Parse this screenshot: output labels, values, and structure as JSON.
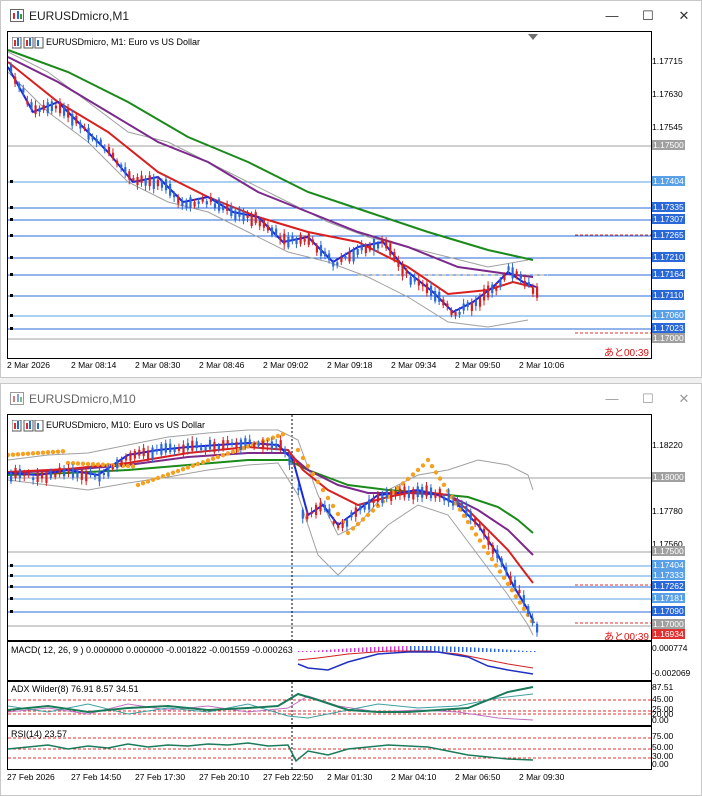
{
  "window1": {
    "title": "EURUSDmicro,M1",
    "chart_label": "EURUSDmicro, M1:  Euro vs US Dollar",
    "price_ticks": [
      "1.17715",
      "1.17630",
      "1.17545"
    ],
    "price_tags": [
      {
        "value": "1.17500",
        "color": "#a0a0a0"
      },
      {
        "value": "1.17404",
        "color": "#5aa0e6"
      },
      {
        "value": "1.17335",
        "color": "#2a68d8"
      },
      {
        "value": "1.17307",
        "color": "#2a68d8"
      },
      {
        "value": "1.17265",
        "color": "#2a68d8"
      },
      {
        "value": "1.17210",
        "color": "#2a68d8"
      },
      {
        "value": "1.17164",
        "color": "#2a68d8"
      },
      {
        "value": "1.17110",
        "color": "#2a68d8"
      },
      {
        "value": "1.17060",
        "color": "#5aa0e6"
      },
      {
        "value": "1.17023",
        "color": "#2a68d8"
      },
      {
        "value": "1.17000",
        "color": "#a0a0a0"
      }
    ],
    "time_labels": [
      "2 Mar 2026",
      "2 Mar 08:14",
      "2 Mar 08:30",
      "2 Mar 08:46",
      "2 Mar 09:02",
      "2 Mar 09:18",
      "2 Mar 09:34",
      "2 Mar 09:50",
      "2 Mar 10:06"
    ],
    "countdown": "あと00:39"
  },
  "window2": {
    "title": "EURUSDmicro,M10",
    "chart_label": "EURUSDmicro, M10:  Euro vs US Dollar",
    "price_ticks": [
      "1.18220",
      "1.17780",
      "1.17560"
    ],
    "price_tags": [
      {
        "value": "1.18000",
        "color": "#a0a0a0"
      },
      {
        "value": "1.17500",
        "color": "#a0a0a0"
      },
      {
        "value": "1.17404",
        "color": "#5aa0e6"
      },
      {
        "value": "1.17333",
        "color": "#5aa0e6"
      },
      {
        "value": "1.17262",
        "color": "#2a68d8"
      },
      {
        "value": "1.17181",
        "color": "#5aa0e6"
      },
      {
        "value": "1.17090",
        "color": "#2a68d8"
      },
      {
        "value": "1.17000",
        "color": "#a0a0a0"
      },
      {
        "value": "1.16934",
        "color": "#e03030"
      }
    ],
    "countdown": "あと00:39",
    "macd": {
      "label": "MACD( 12, 26, 9 ) 0.000000 0.000000 -0.001822 -0.001559 -0.000263",
      "ticks": [
        "0.000774",
        "-0.002069"
      ]
    },
    "adx": {
      "label": "ADX Wilder(8) 76.91 8.57 34.51",
      "ticks": [
        "87.51",
        "45.00",
        "25.00",
        "20.00",
        "0.00"
      ]
    },
    "rsi": {
      "label": "RSI(14) 23.57",
      "ticks": [
        "75.00",
        "50.00",
        "30.00",
        "0.00"
      ]
    },
    "time_labels": [
      "27 Feb 2026",
      "27 Feb 14:50",
      "27 Feb 17:30",
      "27 Feb 20:10",
      "27 Feb 22:50",
      "2 Mar 01:30",
      "2 Mar 04:10",
      "2 Mar 06:50",
      "2 Mar 09:30"
    ]
  }
}
